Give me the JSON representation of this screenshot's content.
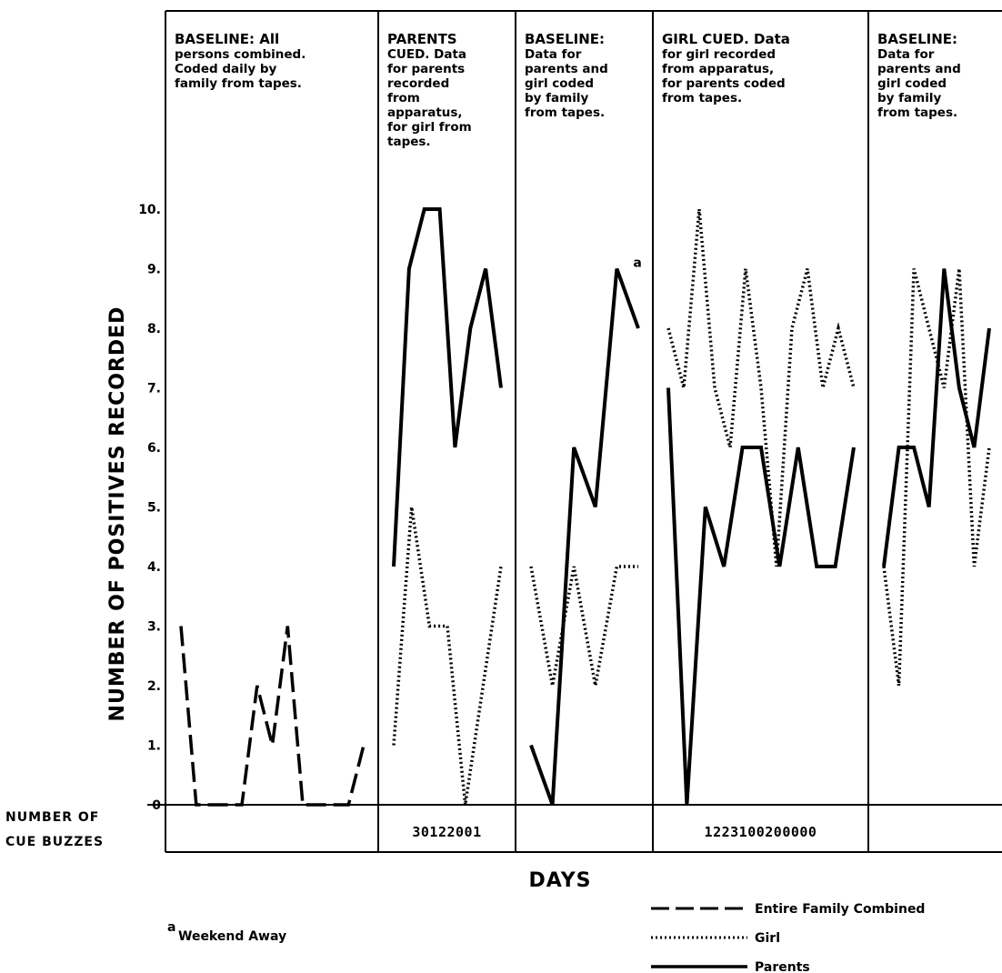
{
  "chart_data": {
    "type": "line",
    "ylabel": "NUMBER OF POSITIVES RECORDED",
    "xlabel": "DAYS",
    "ylim": [
      0,
      10
    ],
    "y_ticks": [
      "0",
      "1.",
      "2.",
      "3.",
      "4.",
      "5.",
      "6.",
      "7.",
      "8.",
      "9.",
      "10."
    ],
    "cue_row_label": [
      "NUMBER OF",
      "CUE BUZZES"
    ],
    "footnote": {
      "marker": "a",
      "text": "Weekend Away"
    },
    "legend": [
      {
        "label": "Entire Family Combined",
        "style": "dashed"
      },
      {
        "label": "Girl",
        "style": "dotted"
      },
      {
        "label": "Parents",
        "style": "solid"
      }
    ],
    "phases": [
      {
        "title": "BASELINE: All",
        "desc": [
          "persons combined.",
          "Coded daily by",
          "family from tapes."
        ],
        "cue_buzzes": "",
        "series": [
          {
            "name": "Entire Family Combined",
            "style": "dashed",
            "values": [
              3,
              0,
              0,
              0,
              0,
              2,
              1,
              3,
              0,
              0,
              0,
              0,
              1
            ]
          }
        ]
      },
      {
        "title": "PARENTS",
        "desc": [
          "CUED. Data",
          "for parents",
          "recorded",
          "from",
          "apparatus,",
          "for girl from",
          "tapes."
        ],
        "cue_buzzes": "30122001",
        "series": [
          {
            "name": "Parents",
            "style": "solid",
            "values": [
              4,
              9,
              10,
              10,
              6,
              8,
              9,
              7
            ]
          },
          {
            "name": "Girl",
            "style": "dotted",
            "values": [
              1,
              5,
              3,
              3,
              0,
              2,
              4
            ]
          }
        ]
      },
      {
        "title": "BASELINE:",
        "desc": [
          "Data for",
          "parents and",
          "girl coded",
          "by family",
          "from tapes."
        ],
        "cue_buzzes": "",
        "series": [
          {
            "name": "Parents",
            "style": "solid",
            "values": [
              1,
              0,
              6,
              5,
              9,
              8
            ]
          },
          {
            "name": "Girl",
            "style": "dotted",
            "values": [
              4,
              2,
              4,
              2,
              4,
              4
            ]
          }
        ],
        "annotation": "a"
      },
      {
        "title": "GIRL CUED. Data",
        "desc": [
          "for girl recorded",
          "from apparatus,",
          "for parents coded",
          "from tapes."
        ],
        "cue_buzzes": "1223100200000",
        "series": [
          {
            "name": "Parents",
            "style": "solid",
            "values": [
              7,
              0,
              5,
              4,
              6,
              6,
              4,
              6,
              4,
              4,
              6
            ]
          },
          {
            "name": "Girl",
            "style": "dotted",
            "values": [
              8,
              7,
              10,
              7,
              6,
              9,
              7,
              4,
              8,
              9,
              7,
              8,
              7
            ]
          }
        ]
      },
      {
        "title": "BASELINE:",
        "desc": [
          "Data for",
          "parents and",
          "girl coded",
          "by family",
          "from tapes."
        ],
        "cue_buzzes": "",
        "series": [
          {
            "name": "Parents",
            "style": "solid",
            "values": [
              4,
              6,
              6,
              5,
              9,
              7,
              6,
              8
            ]
          },
          {
            "name": "Girl",
            "style": "dotted",
            "values": [
              4,
              2,
              9,
              8,
              7,
              9,
              4,
              6
            ]
          }
        ]
      }
    ]
  }
}
